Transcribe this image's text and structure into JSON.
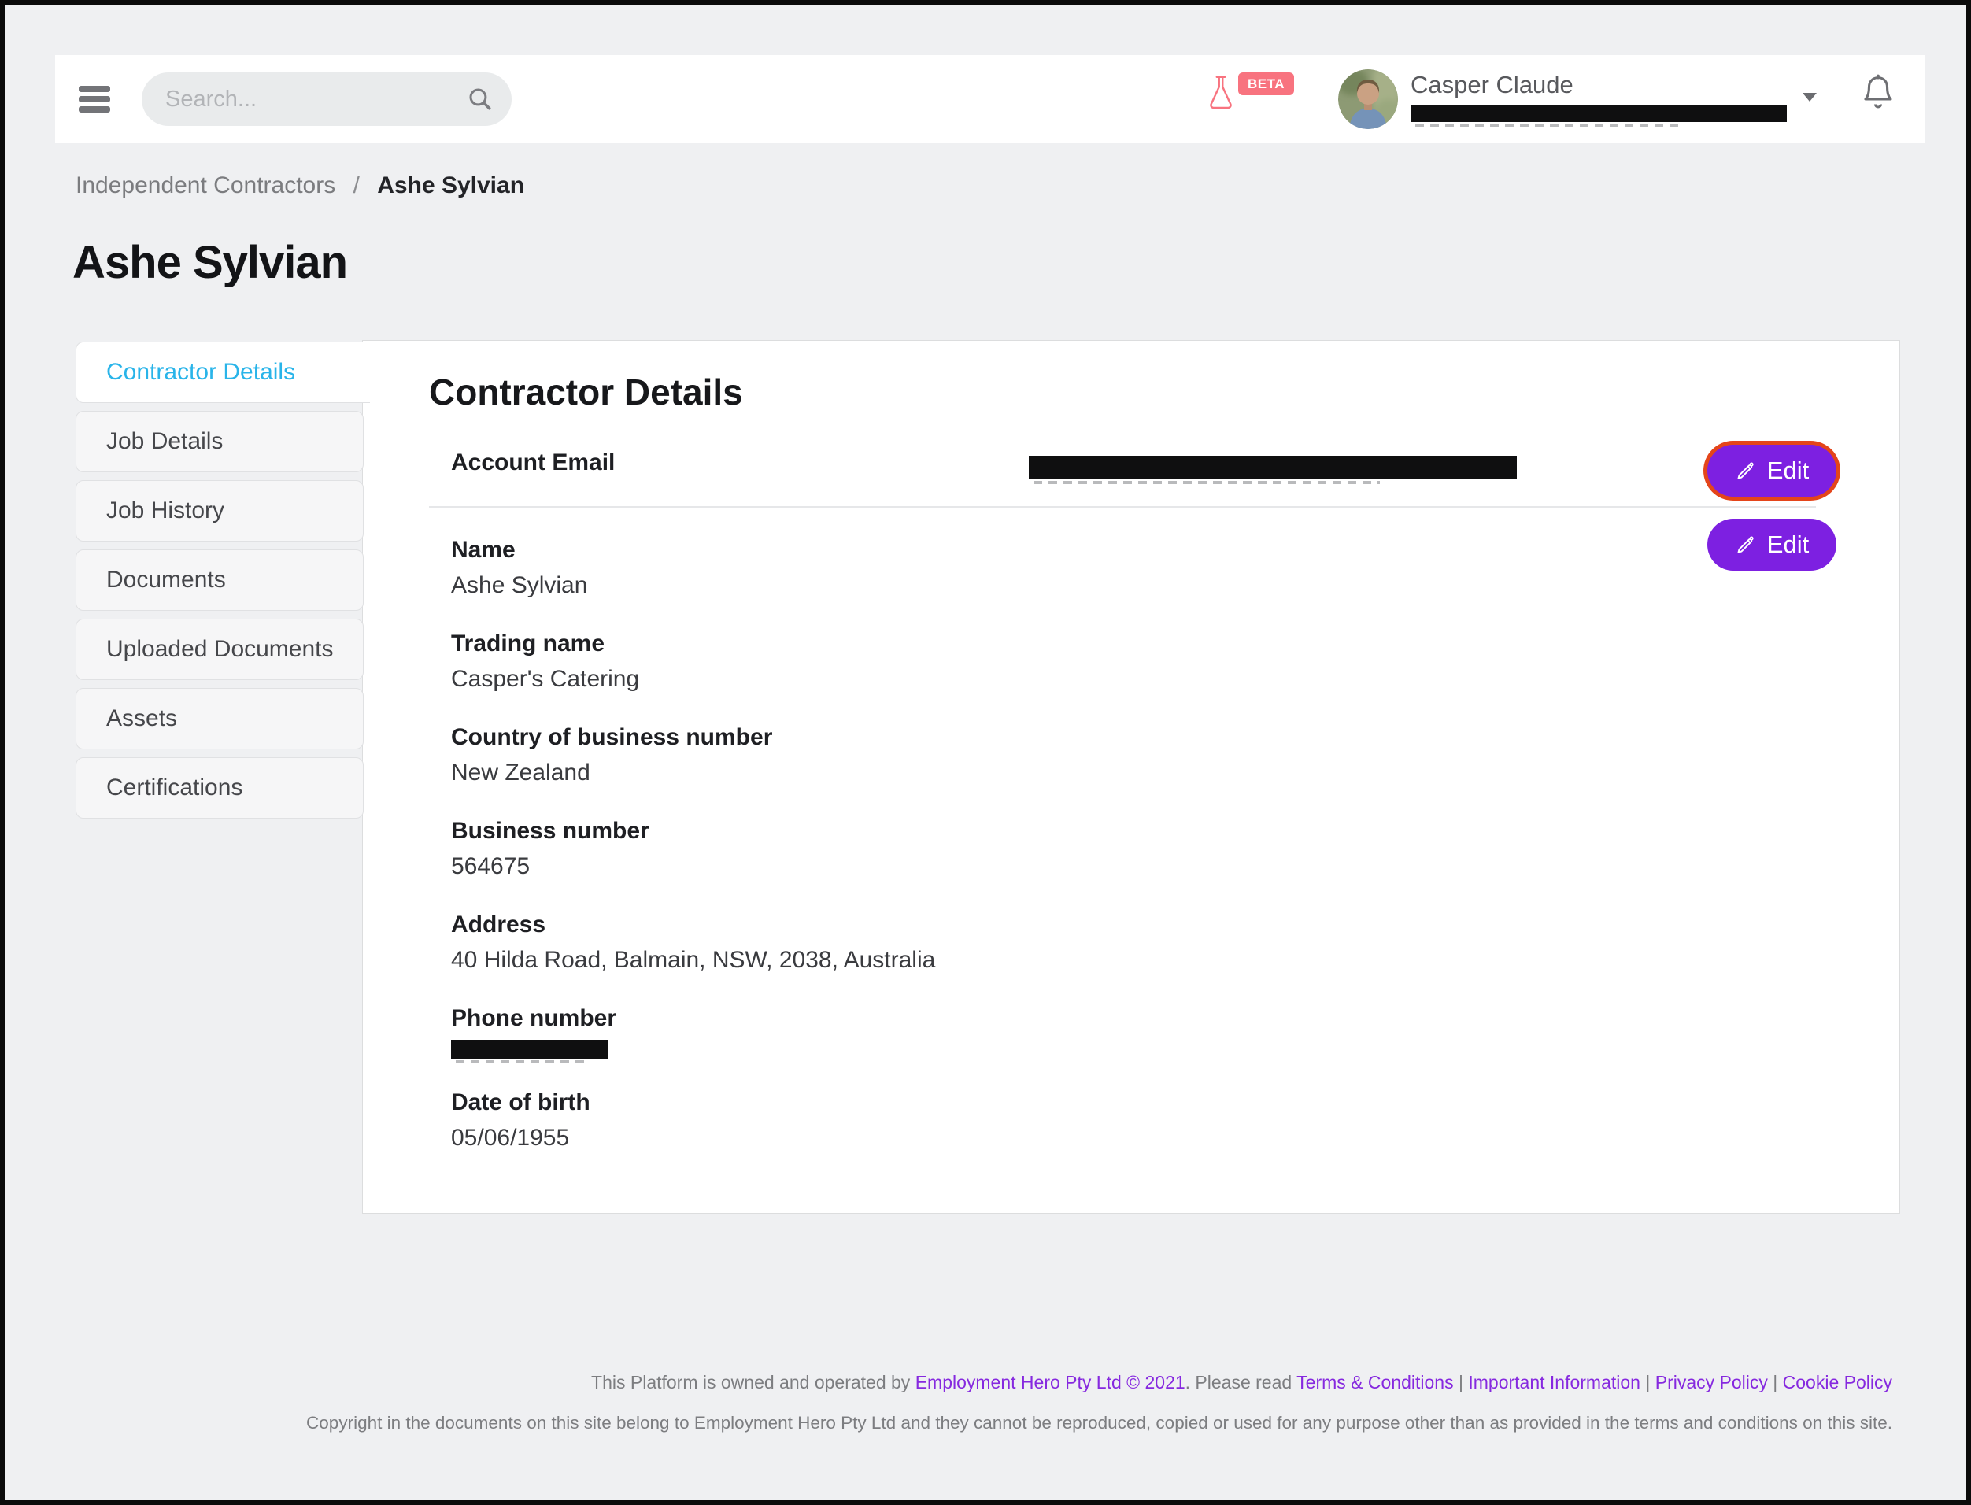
{
  "colors": {
    "accent_purple": "#7d20e1",
    "focus_ring_orange": "#e4451a",
    "active_tab_cyan": "#29b4e9",
    "beta_pink": "#f8737f",
    "link_purple": "#8629df"
  },
  "icons": {
    "menu": "hamburger",
    "search": "magnifier",
    "beta_flask": "erlenmeyer-flask",
    "notifications": "bell",
    "user_dropdown": "chevron-down",
    "edit": "pencil"
  },
  "header": {
    "search_placeholder": "Search...",
    "beta_label": "BETA",
    "user_name": "Casper Claude",
    "user_email_redacted": true
  },
  "breadcrumb": {
    "parent": "Independent Contractors",
    "separator": "/",
    "current": "Ashe Sylvian"
  },
  "page_title": "Ashe Sylvian",
  "sidebar": {
    "tabs": [
      {
        "label": "Contractor Details",
        "active": true
      },
      {
        "label": "Job Details",
        "active": false
      },
      {
        "label": "Job History",
        "active": false
      },
      {
        "label": "Documents",
        "active": false
      },
      {
        "label": "Uploaded Documents",
        "active": false
      },
      {
        "label": "Assets",
        "active": false
      },
      {
        "label": "Certifications",
        "active": false
      }
    ]
  },
  "main": {
    "heading": "Contractor Details",
    "edit_button_label": "Edit",
    "account_email_label": "Account Email",
    "account_email_redacted": true,
    "fields": [
      {
        "label": "Name",
        "value": "Ashe Sylvian"
      },
      {
        "label": "Trading name",
        "value": "Casper's Catering"
      },
      {
        "label": "Country of business number",
        "value": "New Zealand"
      },
      {
        "label": "Business number",
        "value": "564675"
      },
      {
        "label": "Address",
        "value": "40 Hilda Road, Balmain, NSW, 2038, Australia"
      },
      {
        "label": "Phone number",
        "value": "",
        "redacted": true
      },
      {
        "label": "Date of birth",
        "value": "05/06/1955"
      }
    ]
  },
  "footer": {
    "line1": [
      {
        "text": "This Platform is owned and operated by ",
        "link": false
      },
      {
        "text": "Employment Hero Pty Ltd © 2021",
        "link": true
      },
      {
        "text": ". Please read ",
        "link": false
      },
      {
        "text": "Terms & Conditions",
        "link": true
      },
      {
        "text": " | ",
        "link": false
      },
      {
        "text": "Important Information",
        "link": true
      },
      {
        "text": " | ",
        "link": false
      },
      {
        "text": "Privacy Policy",
        "link": true
      },
      {
        "text": " | ",
        "link": false
      },
      {
        "text": "Cookie Policy",
        "link": true
      }
    ],
    "line2": "Copyright in the documents on this site belong to Employment Hero Pty Ltd and they cannot be reproduced, copied or used for any purpose other than as provided in the terms and conditions on this site."
  }
}
